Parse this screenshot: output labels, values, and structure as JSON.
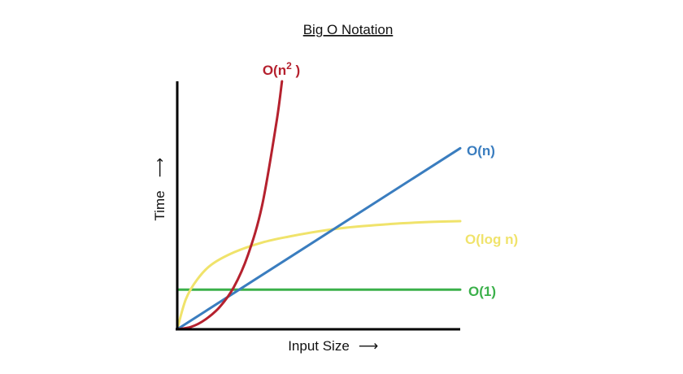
{
  "chart_data": {
    "type": "line",
    "title": "Big O Notation",
    "xlabel": "Input Size",
    "ylabel": "Time",
    "x_arrow": "⟶",
    "y_arrow": "⟶",
    "grid": false,
    "legend": "inline-labels",
    "xlim": [
      0,
      10
    ],
    "ylim": [
      0,
      10
    ],
    "series": [
      {
        "name": "O(n²)",
        "name_parts": {
          "base": "O(n",
          "sup": "2",
          "close": " )"
        },
        "color": "#b5212e",
        "x": [
          0,
          0.5,
          1.0,
          1.5,
          2.0,
          2.5,
          3.0,
          3.5,
          3.7
        ],
        "y": [
          0,
          0.1,
          0.4,
          0.9,
          1.7,
          3.0,
          5.0,
          8.3,
          10.0
        ]
      },
      {
        "name": "O(n)",
        "color": "#3a7dbf",
        "x": [
          0,
          10
        ],
        "y": [
          0,
          7.3
        ]
      },
      {
        "name": "O(log n)",
        "color": "#f0e36b",
        "x": [
          0,
          0.3,
          0.7,
          1.2,
          2.0,
          3.0,
          4.0,
          5.0,
          6.0,
          7.0,
          8.0,
          9.0,
          10.0
        ],
        "y": [
          0,
          1.2,
          2.0,
          2.6,
          3.1,
          3.5,
          3.75,
          3.95,
          4.1,
          4.2,
          4.28,
          4.33,
          4.36
        ]
      },
      {
        "name": "O(1)",
        "color": "#3bb04a",
        "x": [
          0,
          10
        ],
        "y": [
          1.6,
          1.6
        ]
      }
    ]
  }
}
